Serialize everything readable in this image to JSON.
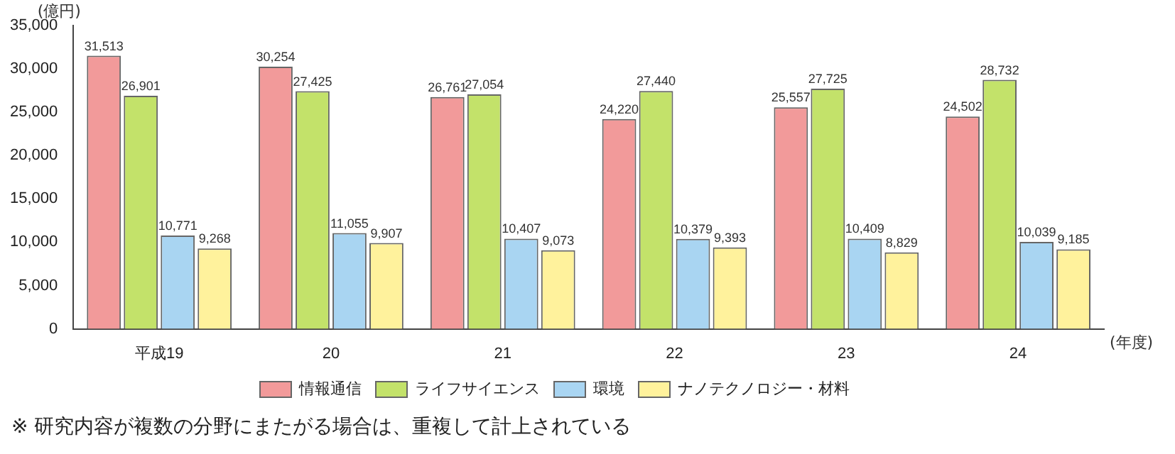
{
  "chart_data": {
    "type": "bar",
    "ylabel": "(億円)",
    "xlabel": "(年度)",
    "categories": [
      "平成19",
      "20",
      "21",
      "22",
      "23",
      "24"
    ],
    "series": [
      {
        "name": "情報通信",
        "color": "#f29a9a",
        "values": [
          31513,
          30254,
          26761,
          24220,
          25557,
          24502
        ],
        "value_labels": [
          "31,513",
          "30,254",
          "26,761",
          "24,220",
          "25,557",
          "24,502"
        ]
      },
      {
        "name": "ライフサイエンス",
        "color": "#c3e26a",
        "values": [
          26901,
          27425,
          27054,
          27440,
          27725,
          28732
        ],
        "value_labels": [
          "26,901",
          "27,425",
          "27,054",
          "27,440",
          "27,725",
          "28,732"
        ]
      },
      {
        "name": "環境",
        "color": "#a9d5f2",
        "values": [
          10771,
          11055,
          10407,
          10379,
          10409,
          10039
        ],
        "value_labels": [
          "10,771",
          "11,055",
          "10,407",
          "10,379",
          "10,409",
          "10,039"
        ]
      },
      {
        "name": "ナノテクノロジー・材料",
        "color": "#fff29c",
        "values": [
          9268,
          9907,
          9073,
          9393,
          8829,
          9185
        ],
        "value_labels": [
          "9,268",
          "9,907",
          "9,073",
          "9,393",
          "8,829",
          "9,185"
        ]
      }
    ],
    "ylim": [
      0,
      35000
    ],
    "yticks": [
      0,
      {
        "value": 5000,
        "label": "5,000"
      },
      {
        "value": 10000,
        "label": "10,000"
      },
      {
        "value": 15000,
        "label": "15,000"
      },
      {
        "value": 20000,
        "label": "20,000"
      },
      {
        "value": 25000,
        "label": "25,000"
      },
      {
        "value": 30000,
        "label": "30,000"
      },
      {
        "value": 35000,
        "label": "35,000"
      }
    ],
    "grid": false,
    "legend": "bottom",
    "annotations": [
      "※ 研究内容が複数の分野にまたがる場合は、重複して計上されている"
    ]
  }
}
